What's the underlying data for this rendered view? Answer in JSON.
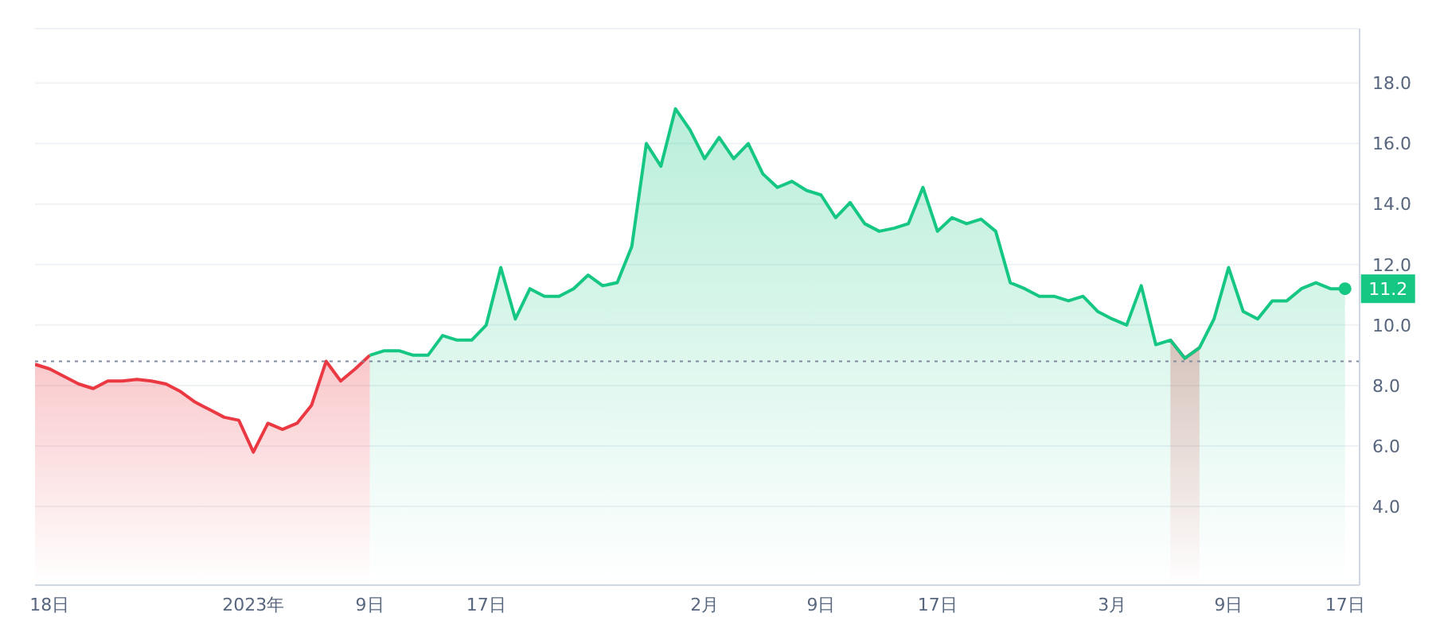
{
  "chart_data": {
    "type": "area",
    "x": [
      "2022-12-17",
      "2022-12-18",
      "2022-12-19",
      "2022-12-20",
      "2022-12-21",
      "2022-12-22",
      "2022-12-23",
      "2022-12-24",
      "2022-12-25",
      "2022-12-26",
      "2022-12-27",
      "2022-12-28",
      "2022-12-29",
      "2022-12-30",
      "2022-12-31",
      "2023-01-01",
      "2023-01-02",
      "2023-01-03",
      "2023-01-04",
      "2023-01-05",
      "2023-01-06",
      "2023-01-07",
      "2023-01-08",
      "2023-01-09",
      "2023-01-10",
      "2023-01-11",
      "2023-01-12",
      "2023-01-13",
      "2023-01-14",
      "2023-01-15",
      "2023-01-16",
      "2023-01-17",
      "2023-01-18",
      "2023-01-19",
      "2023-01-20",
      "2023-01-21",
      "2023-01-22",
      "2023-01-23",
      "2023-01-24",
      "2023-01-25",
      "2023-01-26",
      "2023-01-27",
      "2023-01-28",
      "2023-01-29",
      "2023-01-30",
      "2023-01-31",
      "2023-02-01",
      "2023-02-02",
      "2023-02-03",
      "2023-02-04",
      "2023-02-05",
      "2023-02-06",
      "2023-02-07",
      "2023-02-08",
      "2023-02-09",
      "2023-02-10",
      "2023-02-11",
      "2023-02-12",
      "2023-02-13",
      "2023-02-14",
      "2023-02-15",
      "2023-02-16",
      "2023-02-17",
      "2023-02-18",
      "2023-02-19",
      "2023-02-20",
      "2023-02-21",
      "2023-02-22",
      "2023-02-23",
      "2023-02-24",
      "2023-02-25",
      "2023-02-26",
      "2023-02-27",
      "2023-02-28",
      "2023-03-01",
      "2023-03-02",
      "2023-03-03",
      "2023-03-04",
      "2023-03-05",
      "2023-03-06",
      "2023-03-07",
      "2023-03-08",
      "2023-03-09",
      "2023-03-10",
      "2023-03-11",
      "2023-03-12",
      "2023-03-13",
      "2023-03-14",
      "2023-03-15",
      "2023-03-16",
      "2023-03-17"
    ],
    "series": [
      {
        "color": "#ea3943",
        "values": [
          8.7,
          8.55,
          8.3,
          8.05,
          7.9,
          8.15,
          8.15,
          8.2,
          8.15,
          8.05,
          7.8,
          7.45,
          7.2,
          6.95,
          6.85,
          5.8,
          6.75,
          6.55,
          6.75,
          7.35,
          8.8,
          8.15,
          8.55,
          9.0,
          null,
          null,
          null,
          null,
          null,
          null,
          null,
          null,
          null,
          null,
          null,
          null,
          null,
          null,
          null,
          null,
          null,
          null,
          null,
          null,
          null,
          null,
          null,
          null,
          null,
          null,
          null,
          null,
          null,
          null,
          null,
          null,
          null,
          null,
          null,
          null,
          null,
          null,
          null,
          null,
          null,
          null,
          null,
          null,
          null,
          null,
          null,
          null,
          null,
          null,
          null,
          null,
          null,
          null,
          9.5,
          8.9,
          9.25,
          null,
          null,
          null,
          null,
          null,
          null,
          null,
          null,
          null,
          null
        ]
      },
      {
        "color": "#16c784",
        "values": [
          null,
          null,
          null,
          null,
          null,
          null,
          null,
          null,
          null,
          null,
          null,
          null,
          null,
          null,
          null,
          null,
          null,
          null,
          null,
          null,
          null,
          null,
          null,
          9.0,
          9.15,
          9.15,
          9.0,
          9.0,
          9.65,
          9.5,
          9.5,
          10.0,
          11.9,
          10.2,
          11.2,
          10.95,
          10.95,
          11.2,
          11.65,
          11.3,
          11.4,
          12.6,
          16.0,
          15.25,
          17.15,
          16.45,
          15.5,
          16.2,
          15.5,
          16.0,
          15.0,
          14.55,
          14.75,
          14.45,
          14.3,
          13.55,
          14.05,
          13.35,
          13.1,
          13.2,
          13.35,
          14.55,
          13.1,
          13.55,
          13.35,
          13.5,
          13.1,
          11.4,
          11.2,
          10.95,
          10.95,
          10.8,
          10.95,
          10.45,
          10.2,
          10.0,
          11.3,
          9.35,
          9.5,
          8.9,
          9.25,
          10.2,
          11.9,
          10.45,
          10.2,
          10.8,
          10.8,
          11.2,
          11.4,
          11.2,
          11.2
        ]
      }
    ],
    "xlim": [
      "2022-12-17",
      "2023-03-18"
    ],
    "xticks": [
      {
        "value": "2022-12-18",
        "label": "18日"
      },
      {
        "value": "2023-01-01",
        "label": "2023年"
      },
      {
        "value": "2023-01-09",
        "label": "9日"
      },
      {
        "value": "2023-01-17",
        "label": "17日"
      },
      {
        "value": "2023-02-01",
        "label": "2月"
      },
      {
        "value": "2023-02-09",
        "label": "9日"
      },
      {
        "value": "2023-02-17",
        "label": "17日"
      },
      {
        "value": "2023-03-01",
        "label": "3月"
      },
      {
        "value": "2023-03-09",
        "label": "9日"
      },
      {
        "value": "2023-03-17",
        "label": "17日"
      }
    ],
    "ylim": [
      1.4,
      19.8
    ],
    "yticks": [
      {
        "value": 4,
        "label": "4.0"
      },
      {
        "value": 6,
        "label": "6.0"
      },
      {
        "value": 8,
        "label": "8.0"
      },
      {
        "value": 10,
        "label": "10.0"
      },
      {
        "value": 12,
        "label": "12.0"
      },
      {
        "value": 14,
        "label": "14.0"
      },
      {
        "value": 16,
        "label": "16.0"
      },
      {
        "value": 18,
        "label": "18.0"
      }
    ],
    "grid": "y",
    "ref_lines": [
      {
        "axis": "y",
        "value": 8.8,
        "line_style": "dotted",
        "color": "#808a9d"
      }
    ],
    "annotations": [
      {
        "text": "11.2",
        "x": "2023-03-17",
        "y": 11.2
      }
    ]
  }
}
